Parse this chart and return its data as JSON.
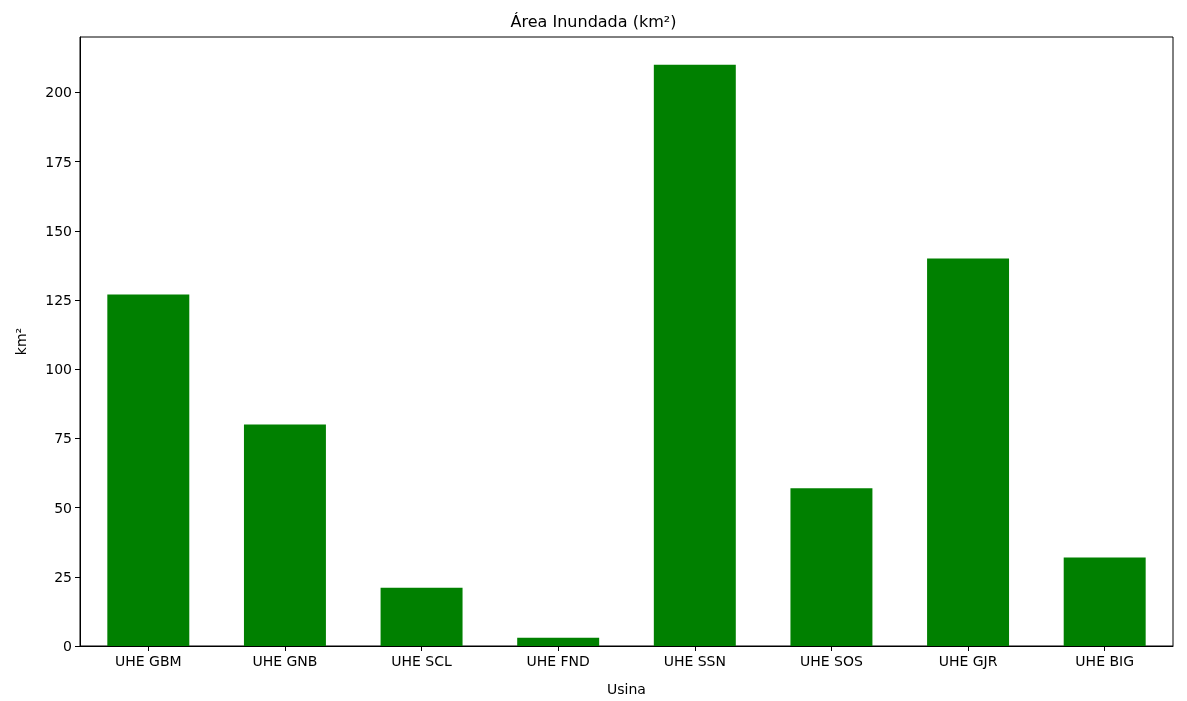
{
  "chart_data": {
    "type": "bar",
    "title": "Área Inundada (km²)",
    "xlabel": "Usina",
    "ylabel": "km²",
    "categories": [
      "UHE GBM",
      "UHE GNB",
      "UHE SCL",
      "UHE FND",
      "UHE SSN",
      "UHE SOS",
      "UHE GJR",
      "UHE BIG"
    ],
    "values": [
      127,
      80,
      21,
      3,
      210,
      57,
      140,
      32
    ],
    "color": "#008000",
    "ylim": [
      0,
      220
    ],
    "yticks": [
      0,
      25,
      50,
      75,
      100,
      125,
      150,
      175,
      200
    ],
    "grid": false
  }
}
